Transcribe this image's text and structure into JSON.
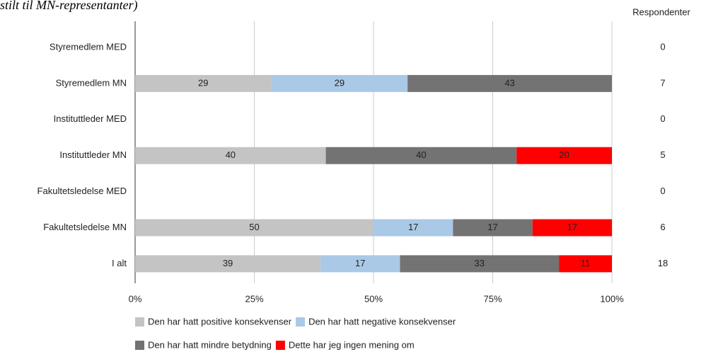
{
  "chart_data": {
    "type": "stacked_bar_horizontal",
    "title": "stilt til MN-representanter)",
    "categories": [
      "Styremedlem MED",
      "Styremedlem MN",
      "Instituttleder MED",
      "Instituttleder MN",
      "Fakultetsledelse MED",
      "Fakultetsledelse MN",
      "I alt"
    ],
    "series": [
      {
        "name": "Den har hatt positive konsekvenser",
        "color": "#c4c4c4",
        "values": [
          null,
          28.57,
          null,
          40,
          null,
          50,
          38.89
        ],
        "value_labels": [
          null,
          "29",
          null,
          "40",
          null,
          "50",
          "39"
        ]
      },
      {
        "name": "Den har hatt negative konsekvenser",
        "color": "#a9c9e6",
        "values": [
          null,
          28.57,
          null,
          null,
          null,
          16.67,
          16.67
        ],
        "value_labels": [
          null,
          "29",
          null,
          null,
          null,
          "17",
          "17"
        ]
      },
      {
        "name": "Den har hatt mindre betydning",
        "color": "#737373",
        "values": [
          null,
          42.86,
          null,
          40,
          null,
          16.67,
          33.33
        ],
        "value_labels": [
          null,
          "43",
          null,
          "40",
          null,
          "17",
          "33"
        ]
      },
      {
        "name": "Dette har jeg ingen mening om",
        "color": "#ff0000",
        "values": [
          null,
          null,
          null,
          20,
          null,
          16.67,
          11.11
        ],
        "value_labels": [
          null,
          null,
          null,
          "20",
          null,
          "17",
          "11"
        ]
      }
    ],
    "respondents": {
      "label": "Respondenter",
      "values": [
        0,
        7,
        0,
        5,
        0,
        6,
        18
      ]
    },
    "xlim": [
      0,
      100
    ],
    "xticks": [
      {
        "value": 0,
        "label": "0%"
      },
      {
        "value": 25,
        "label": "25%"
      },
      {
        "value": 50,
        "label": "50%"
      },
      {
        "value": 75,
        "label": "75%"
      },
      {
        "value": 100,
        "label": "100%"
      }
    ],
    "grid": true
  }
}
